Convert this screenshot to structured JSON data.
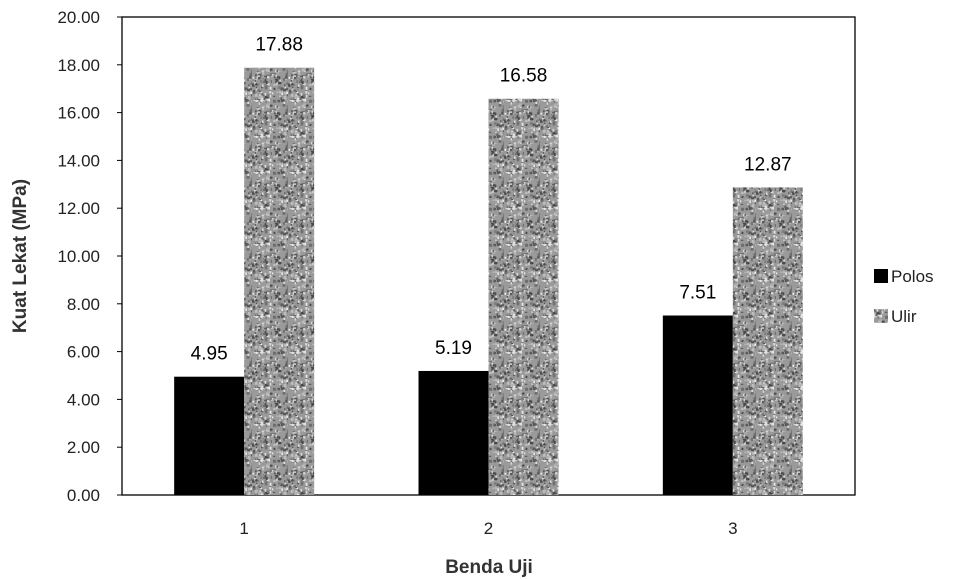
{
  "chart_data": {
    "type": "bar",
    "categories": [
      "1",
      "2",
      "3"
    ],
    "series": [
      {
        "name": "Polos",
        "values": [
          4.95,
          5.19,
          7.51
        ],
        "labels": [
          "4.95",
          "5.19",
          "7.51"
        ],
        "color": "#000000",
        "pattern": "solid"
      },
      {
        "name": "Ulir",
        "values": [
          17.88,
          16.58,
          12.87
        ],
        "labels": [
          "17.88",
          "16.58",
          "12.87"
        ],
        "color": "#8c8c8c",
        "pattern": "granite"
      }
    ],
    "title": "",
    "xlabel": "Benda Uji",
    "ylabel": "Kuat Lekat (MPa)",
    "ylim": [
      0,
      20
    ],
    "yticks": [
      "0.00",
      "2.00",
      "4.00",
      "6.00",
      "8.00",
      "10.00",
      "12.00",
      "14.00",
      "16.00",
      "18.00",
      "20.00"
    ],
    "grid": false,
    "legend": "right"
  }
}
